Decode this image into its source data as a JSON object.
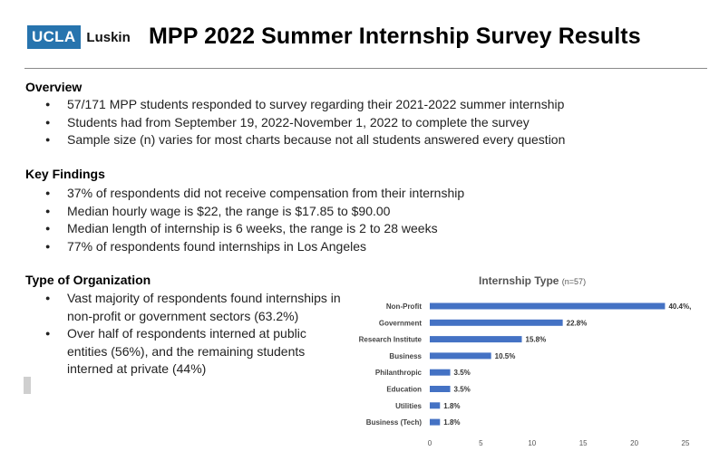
{
  "header": {
    "logo_left": "UCLA",
    "logo_right": "Luskin",
    "title": "MPP 2022 Summer Internship Survey Results"
  },
  "overview": {
    "heading": "Overview",
    "items": [
      "57/171 MPP students responded to survey regarding their 2021-2022 summer internship",
      "Students had from September 19, 2022-November 1, 2022 to complete the survey",
      "Sample size (n) varies for most charts because not all students answered every question"
    ]
  },
  "key_findings": {
    "heading": "Key Findings",
    "items": [
      "37% of respondents did not receive compensation from their internship",
      "Median hourly wage is $22, the range is $17.85 to $90.00",
      "Median length of internship is 6 weeks, the range is 2 to 28 weeks",
      "77% of respondents found internships in Los Angeles"
    ]
  },
  "org_type": {
    "heading": "Type of Organization",
    "items": [
      "Vast majority of respondents found internships in non-profit or government sectors (63.2%)",
      "Over half of respondents interned at public entities (56%), and the remaining students interned at private (44%)"
    ]
  },
  "chart_data": {
    "type": "bar",
    "orientation": "horizontal",
    "title": "Internship Type",
    "subtitle": "(n=57)",
    "categories": [
      "Non-Profit",
      "Government",
      "Research Institute",
      "Business",
      "Philanthropic",
      "Education",
      "Utilities",
      "Business (Tech)"
    ],
    "values": [
      23,
      13,
      9,
      6,
      2,
      2,
      1,
      1
    ],
    "data_labels": [
      "40.4%,",
      "22.8%",
      "15.8%",
      "10.5%",
      "3.5%",
      "3.5%",
      "1.8%",
      "1.8%"
    ],
    "x_ticks": [
      "0",
      "5",
      "10",
      "15",
      "20",
      "25"
    ],
    "xlim": [
      0,
      25
    ],
    "bar_color": "#4472c4",
    "grid": false,
    "legend": "none"
  }
}
